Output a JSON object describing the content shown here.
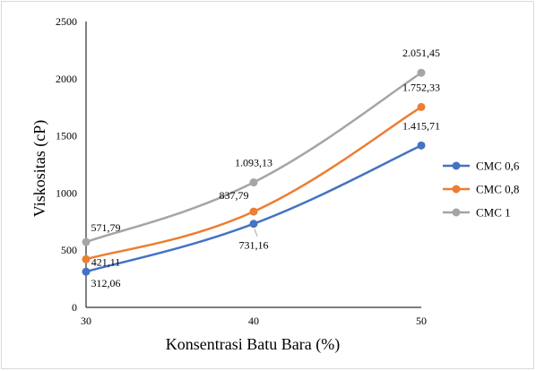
{
  "chart_data": {
    "type": "line",
    "x": [
      30,
      40,
      50
    ],
    "xlabel": "Konsentrasi Batu Bara (%)",
    "ylabel": "Viskositas (cP)",
    "xtick_labels": [
      "30",
      "40",
      "50"
    ],
    "ytick_values": [
      0,
      500,
      1000,
      1500,
      2000,
      2500
    ],
    "ytick_labels": [
      "0",
      "500",
      "1000",
      "1500",
      "2000",
      "2500"
    ],
    "ylim": [
      0,
      2500
    ],
    "grid": false,
    "legend_position": "right",
    "series": [
      {
        "name": "CMC 0,6",
        "color": "#4472C4",
        "values": [
          312.06,
          731.16,
          1415.71
        ],
        "labels": [
          "312,06",
          "731,16",
          "1.415,71"
        ]
      },
      {
        "name": "CMC 0,8",
        "color": "#ED7D31",
        "values": [
          421.11,
          837.79,
          1752.33
        ],
        "labels": [
          "421,11",
          "837,79",
          "1.752,33"
        ]
      },
      {
        "name": "CMC 1",
        "color": "#A5A5A5",
        "values": [
          571.79,
          1093.13,
          2051.45
        ],
        "labels": [
          "571,79",
          "1.093,13",
          "2.051,45"
        ]
      }
    ]
  }
}
